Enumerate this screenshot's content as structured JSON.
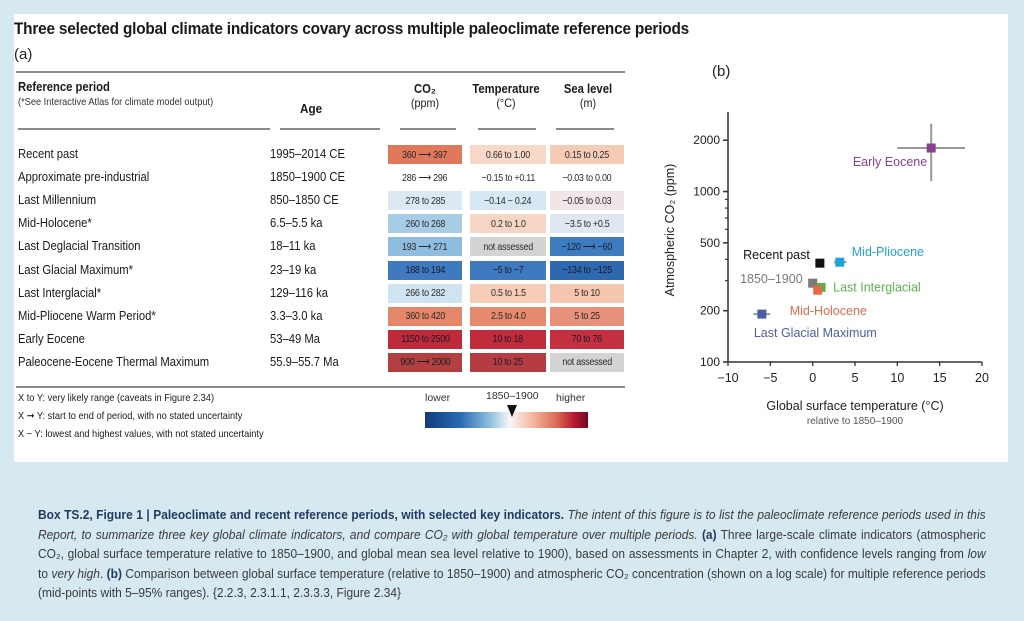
{
  "figure": {
    "title": "Three selected global climate indicators covary across multiple paleoclimate reference periods",
    "panel_a_label": "(a)",
    "panel_b_label": "(b)"
  },
  "table": {
    "headers": {
      "reference_period": "Reference period",
      "reference_note": "(*See Interactive Atlas for climate model output)",
      "age": "Age",
      "co2": "CO₂",
      "co2_unit": "(ppm)",
      "temperature": "Temperature",
      "temperature_unit": "(°C)",
      "sea_level": "Sea level",
      "sea_level_unit": "(m)"
    },
    "rows": [
      {
        "period": "Recent past",
        "age": "1995–2014 CE",
        "co2": "360 ⟶ 397",
        "temp": "0.66 to 1.00",
        "sea": "0.15 to 0.25",
        "co2_color": "#e0785c",
        "temp_color": "#f8d8c8",
        "sea_color": "#f6cbb6"
      },
      {
        "period": "Approximate pre-industrial",
        "age": "1850–1900 CE",
        "co2": "286 ⟶ 296",
        "temp": "−0.15 to +0.11",
        "sea": "−0.03 to 0.00",
        "co2_color": "#ffffff",
        "temp_color": "#ffffff",
        "sea_color": "#ffffff"
      },
      {
        "period": "Last Millennium",
        "age": "850–1850 CE",
        "co2": "278 to 285",
        "temp": "−0.14 ~ 0.24",
        "sea": "−0.05 to 0.03",
        "co2_color": "#dce9f3",
        "temp_color": "#d6e8f3",
        "sea_color": "#f0e6ea"
      },
      {
        "period": "Mid-Holocene*",
        "age": "6.5–5.5 ka",
        "co2": "260 to 268",
        "temp": "0.2 to 1.0",
        "sea": "−3.5 to +0.5",
        "co2_color": "#a7cde6",
        "temp_color": "#f7d6c6",
        "sea_color": "#dfe8f1"
      },
      {
        "period": "Last Deglacial Transition",
        "age": "18–11 ka",
        "co2": "193 ⟶ 271",
        "temp": "not assessed",
        "sea": "−120 ⟶ −60",
        "co2_color": "#8fbde0",
        "temp_color": "#d3d3d3",
        "sea_color": "#3d7cbf"
      },
      {
        "period": "Last Glacial Maximum*",
        "age": "23–19 ka",
        "co2": "188 to 194",
        "temp": "−5 to −7",
        "sea": "−134 to −125",
        "co2_color": "#3f79bf",
        "temp_color": "#3f79bf",
        "sea_color": "#2e68b0"
      },
      {
        "period": "Last Interglacial*",
        "age": "129–116 ka",
        "co2": "266 to 282",
        "temp": "0.5 to 1.5",
        "sea": "5 to 10",
        "co2_color": "#cfe3f1",
        "temp_color": "#f7cdb8",
        "sea_color": "#f6c5ae"
      },
      {
        "period": "Mid-Pliocene Warm Period*",
        "age": "3.3–3.0 ka",
        "co2": "360 to 420",
        "temp": "2.5 to 4.0",
        "sea": "5 to 25",
        "co2_color": "#e4866a",
        "temp_color": "#e58a6c",
        "sea_color": "#e8917a"
      },
      {
        "period": "Early Eocene",
        "age": "53–49 Ma",
        "co2": "1150 to 2500",
        "temp": "10 to 18",
        "sea": "70 to 76",
        "co2_color": "#bf2a3a",
        "temp_color": "#c12b3b",
        "sea_color": "#c53040"
      },
      {
        "period": "Paleocene-Eocene Thermal Maximum",
        "age": "55.9–55.7 Ma",
        "co2": "900 ⟶ 2000",
        "temp": "10 to 25",
        "sea": "not assessed",
        "co2_color": "#b24040",
        "temp_color": "#b53c43",
        "sea_color": "#d3d3d3"
      }
    ],
    "legend": [
      "X to Y: very likely range (caveats in Figure 2.34)",
      "X ➞ Y: start to end of period, with no stated uncertainty",
      "X ~ Y: lowest and highest values, with not stated uncertainty"
    ],
    "colorbar": {
      "lower": "lower",
      "mid": "1850–1900",
      "higher": "higher"
    }
  },
  "chart_data": {
    "type": "scatter",
    "title": "(b)",
    "xlabel": "Global surface temperature (°C)",
    "xlabel_sub": "relative to 1850–1900",
    "ylabel": "Atmospheric CO₂ (ppm)",
    "xlim": [
      -10,
      20
    ],
    "ylim": [
      100,
      2700
    ],
    "yscale": "log",
    "xticks": [
      -10,
      -5,
      0,
      5,
      10,
      15,
      20
    ],
    "xtick_labels": [
      "−10",
      "−5",
      "0",
      "5",
      "10",
      "15",
      "20"
    ],
    "yticks": [
      100,
      200,
      500,
      1000,
      2000
    ],
    "ytick_labels": [
      "100",
      "200",
      "500",
      "1000",
      "2000"
    ],
    "grid": false,
    "points": [
      {
        "name": "Early Eocene",
        "x": 14,
        "y": 1800,
        "xerr": [
          10,
          18
        ],
        "yerr": [
          1150,
          2500
        ],
        "color": "#8a3f8f",
        "label_pos": "left-below"
      },
      {
        "name": "Recent past",
        "x": 0.85,
        "y": 380,
        "color": "#111111",
        "label_pos": "left"
      },
      {
        "name": "Mid-Pliocene",
        "x": 3.2,
        "y": 385,
        "xerr": [
          2.5,
          4.0
        ],
        "color": "#1ea4d6",
        "label_pos": "right"
      },
      {
        "name": "1850–1900",
        "x": 0,
        "y": 290,
        "color": "#7a7a7a",
        "label_pos": "left"
      },
      {
        "name": "Last Interglacial",
        "x": 1.0,
        "y": 274,
        "color": "#5cb14d",
        "label_pos": "right"
      },
      {
        "name": "Mid-Holocene",
        "x": 0.6,
        "y": 264,
        "color": "#e8684a",
        "label_pos": "below"
      },
      {
        "name": "Last Glacial Maximum",
        "x": -6,
        "y": 191,
        "xerr": [
          -7,
          -5
        ],
        "color": "#4a5fa8",
        "label_pos": "below"
      }
    ]
  },
  "caption": {
    "label": "Box TS.2, Figure 1 | Paleoclimate and recent reference periods, with selected key indicators.",
    "intro_italic": "The intent of this figure is to list the paleoclimate reference periods used in this Report, to summarize three key global climate indicators, and compare CO₂ with global temperature over multiple periods.",
    "a_label": "(a)",
    "a_text_1": "Three large-scale climate indicators (atmospheric CO₂, global surface temperature relative to 1850–1900, and global mean sea level relative to 1900), based on assessments in Chapter 2, with confidence levels ranging from",
    "a_low": "low",
    "a_to": "to",
    "a_very_high": "very high",
    "b_label": "(b)",
    "b_text": "Comparison between global surface temperature (relative to 1850–1900) and atmospheric CO₂ concentration (shown on a log scale) for multiple reference periods (mid-points with 5–95% ranges). {2.2.3, 2.3.1.1, 2.3.3.3, Figure 2.34}"
  }
}
